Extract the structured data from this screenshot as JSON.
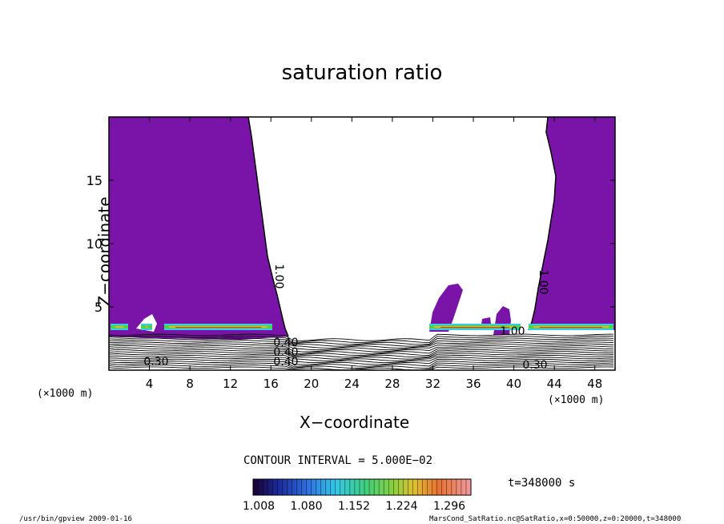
{
  "chart_data": {
    "type": "heatmap",
    "title": "saturation ratio",
    "xlabel": "X−coordinate",
    "ylabel": "Z−coordinate",
    "x_unit_left": "(×1000 m)",
    "x_unit_right": "(×1000 m)",
    "xlim": [
      0,
      50
    ],
    "ylim": [
      0,
      20
    ],
    "xticks": [
      4,
      8,
      12,
      16,
      20,
      24,
      28,
      32,
      36,
      40,
      44,
      48
    ],
    "yticks": [
      5,
      10,
      15
    ],
    "contour_interval": "CONTOUR INTERVAL = 5.000E−02",
    "time_label": "t=348000 s",
    "colorbar_ticks": [
      "1.008",
      "1.080",
      "1.152",
      "1.224",
      "1.296"
    ],
    "contour_labels": [
      "1.00",
      "1.00",
      "0.30",
      "0.30",
      "0.40",
      "0.40",
      "0.40",
      "1.00"
    ],
    "colors": {
      "saturated_fill": "#7a14a8",
      "band_cyan": "#32d2e6",
      "band_green": "#52d04a",
      "band_orange": "#f0b22a",
      "band_red": "#e23c22"
    }
  },
  "footer": {
    "left": "/usr/bin/gpview  2009-01-16",
    "right": "MarsCond_SatRatio.nc@SatRatio,x=0:50000,z=0:20000,t=348000"
  }
}
